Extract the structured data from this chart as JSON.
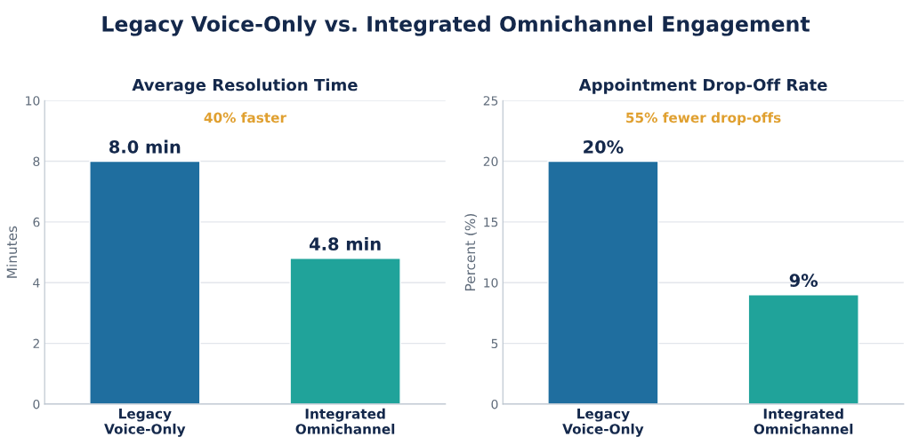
{
  "chart_data": [
    {
      "type": "other",
      "title": "Legacy Voice-Only vs. Integrated Omnichannel Engagement"
    },
    {
      "type": "bar",
      "title": "Average Resolution Time",
      "ylabel": "Minutes",
      "categories": [
        "Legacy\nVoice-Only",
        "Integrated\nOmnichannel"
      ],
      "values": [
        8.0,
        4.8
      ],
      "colors": [
        "#1f6e9f",
        "#20a39a"
      ],
      "value_labels": [
        "8.0 min",
        "4.8 min"
      ],
      "annotations": [
        "40% faster"
      ],
      "ylim": [
        0,
        10
      ],
      "yticks": [
        0,
        2,
        4,
        6,
        8,
        10
      ],
      "grid": "y"
    },
    {
      "type": "bar",
      "title": "Appointment Drop-Off Rate",
      "ylabel": "Percent (%)",
      "categories": [
        "Legacy\nVoice-Only",
        "Integrated\nOmnichannel"
      ],
      "values": [
        20,
        9
      ],
      "colors": [
        "#1f6e9f",
        "#20a39a"
      ],
      "value_labels": [
        "20%",
        "9%"
      ],
      "annotations": [
        "55% fewer drop-offs"
      ],
      "ylim": [
        0,
        25
      ],
      "yticks": [
        0,
        5,
        10,
        15,
        20,
        25
      ],
      "grid": "y"
    }
  ]
}
